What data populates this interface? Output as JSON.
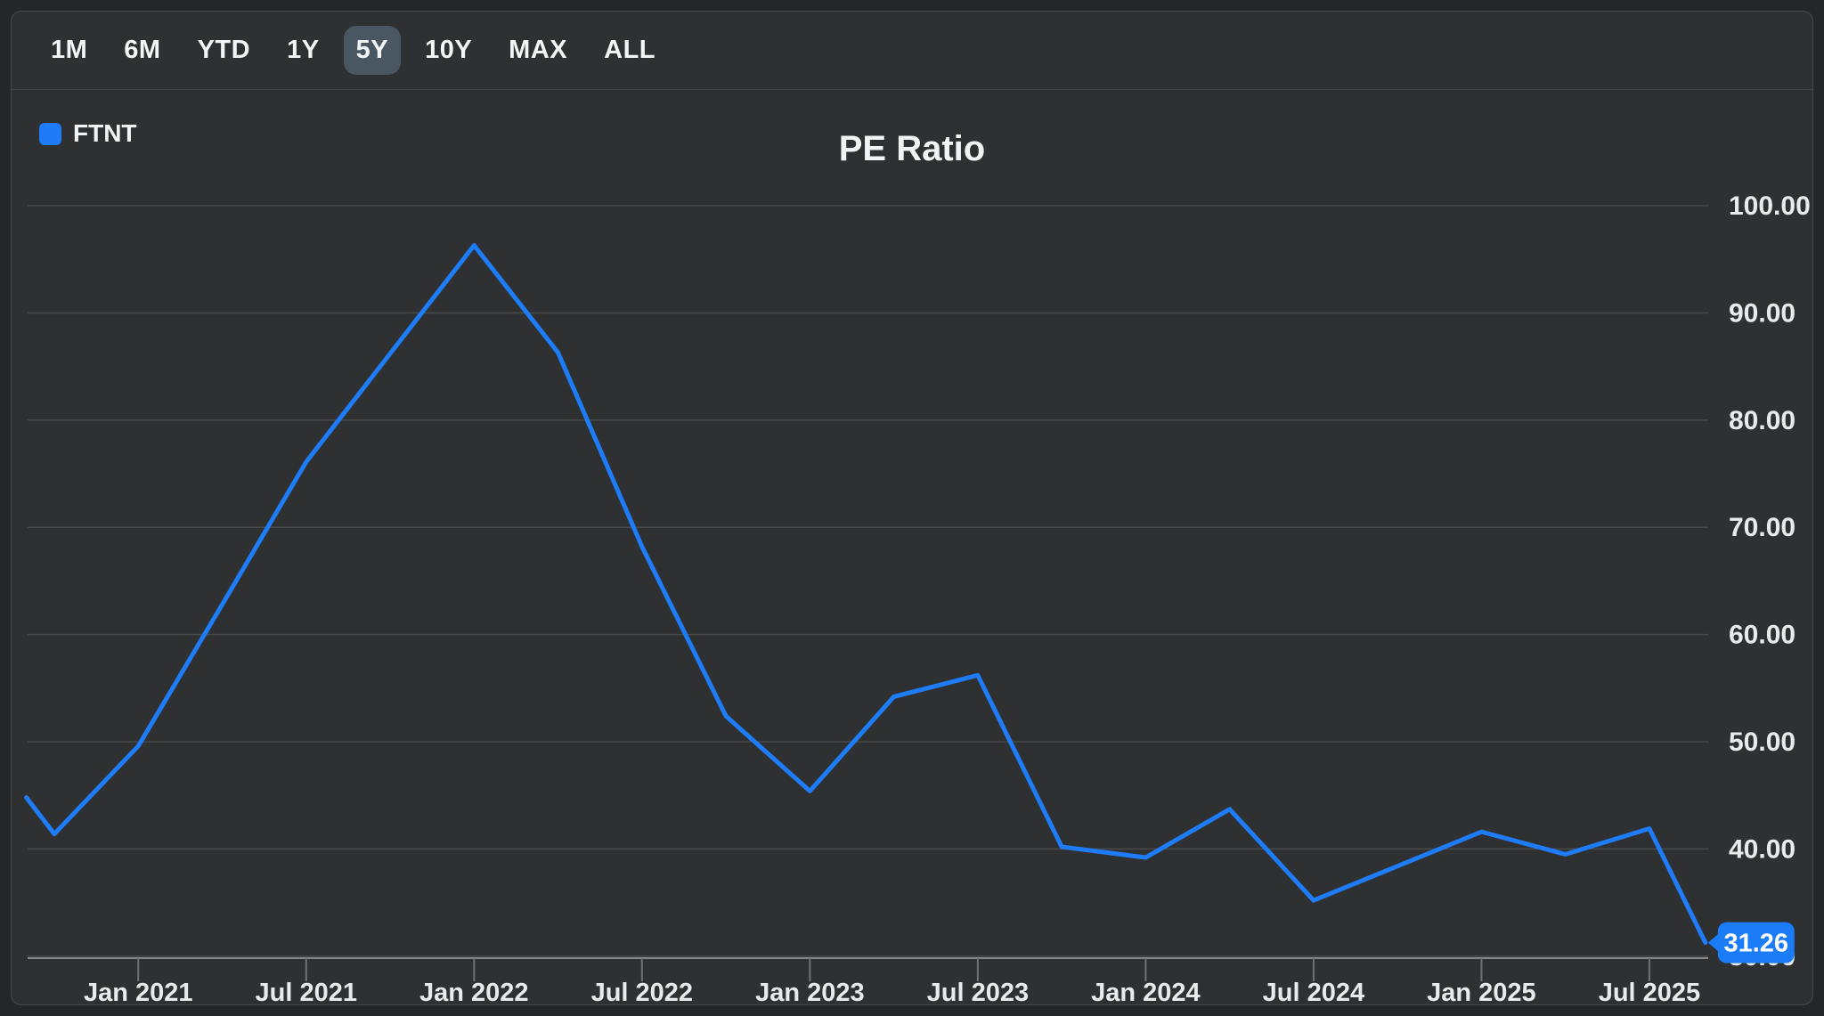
{
  "toolbar": {
    "ranges": [
      {
        "label": "1M",
        "active": false
      },
      {
        "label": "6M",
        "active": false
      },
      {
        "label": "YTD",
        "active": false
      },
      {
        "label": "1Y",
        "active": false
      },
      {
        "label": "5Y",
        "active": true
      },
      {
        "label": "10Y",
        "active": false
      },
      {
        "label": "MAX",
        "active": false
      },
      {
        "label": "ALL",
        "active": false
      }
    ]
  },
  "legend": {
    "label": "FTNT",
    "symbol_color": "#1f7bf7"
  },
  "title": "PE Ratio",
  "chart_data": {
    "type": "line",
    "title": "PE Ratio",
    "series_name": "FTNT",
    "line_color": "#1e7cf7",
    "grid": "horizontal",
    "legend_position": "top-left",
    "y_axis": {
      "min": 30,
      "max": 100,
      "step": 10,
      "labels": [
        "100.00",
        "90.00",
        "80.00",
        "70.00",
        "60.00",
        "50.00",
        "40.00",
        "30.00"
      ],
      "side": "right"
    },
    "x_axis": {
      "tick_labels": [
        {
          "label": "Jan 2021",
          "t": 3
        },
        {
          "label": "Jul 2021",
          "t": 9
        },
        {
          "label": "Jan 2022",
          "t": 15
        },
        {
          "label": "Jul 2022",
          "t": 21
        },
        {
          "label": "Jan 2023",
          "t": 27
        },
        {
          "label": "Jul 2023",
          "t": 33
        },
        {
          "label": "Jan 2024",
          "t": 39
        },
        {
          "label": "Jul 2024",
          "t": 45
        },
        {
          "label": "Jan 2025",
          "t": 51
        },
        {
          "label": "Jul 2025",
          "t": 57
        }
      ]
    },
    "clip_start": {
      "t": -1,
      "value": 44.8
    },
    "points": [
      {
        "date": "Oct 2020",
        "t": 0,
        "value": 41.4
      },
      {
        "date": "Jan 2021",
        "t": 3,
        "value": 49.6
      },
      {
        "date": "Apr 2021",
        "t": 6,
        "value": 62.8
      },
      {
        "date": "Jul 2021",
        "t": 9,
        "value": 76.1
      },
      {
        "date": "Oct 2021",
        "t": 12,
        "value": 86.2
      },
      {
        "date": "Jan 2022",
        "t": 15,
        "value": 96.3
      },
      {
        "date": "Apr 2022",
        "t": 18,
        "value": 86.3
      },
      {
        "date": "Jul 2022",
        "t": 21,
        "value": 68.2
      },
      {
        "date": "Oct 2022",
        "t": 24,
        "value": 52.4
      },
      {
        "date": "Jan 2023",
        "t": 27,
        "value": 45.4
      },
      {
        "date": "Apr 2023",
        "t": 30,
        "value": 54.2
      },
      {
        "date": "Jul 2023",
        "t": 33,
        "value": 56.2
      },
      {
        "date": "Oct 2023",
        "t": 36,
        "value": 40.2
      },
      {
        "date": "Jan 2024",
        "t": 39,
        "value": 39.2
      },
      {
        "date": "Apr 2024",
        "t": 42,
        "value": 43.7
      },
      {
        "date": "Jul 2024",
        "t": 45,
        "value": 35.2
      },
      {
        "date": "Oct 2024",
        "t": 48,
        "value": 38.4
      },
      {
        "date": "Jan 2025",
        "t": 51,
        "value": 41.6
      },
      {
        "date": "Apr 2025",
        "t": 54,
        "value": 39.5
      },
      {
        "date": "Jul 2025",
        "t": 57,
        "value": 41.9
      },
      {
        "date": "Sep 2025",
        "t": 59,
        "value": 31.26
      }
    ],
    "latest_label": "31.26",
    "latest_tag_color": "#1a7cf6"
  },
  "colors": {
    "page_bg": "#242628",
    "card_bg": "#2e3031",
    "card_border": "#47494b",
    "gridline": "#47494b",
    "axis_line": "#85888a",
    "tick_mark": "#6f7274",
    "label_text": "#e9eaeb",
    "active_range_bg": "#4b5663"
  }
}
